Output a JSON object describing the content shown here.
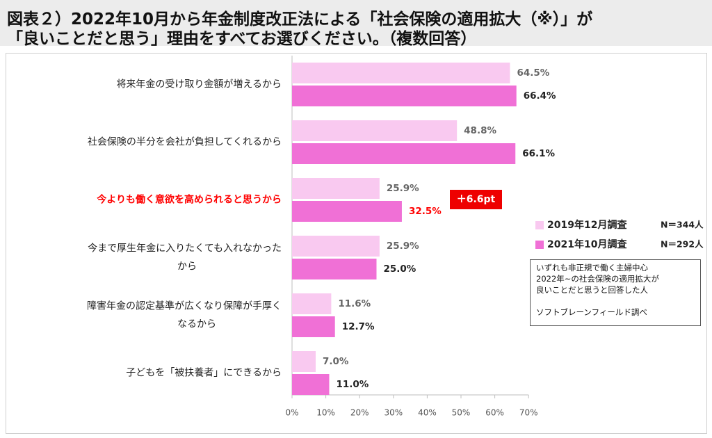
{
  "title": {
    "line1": "図表２）2022年10月から年金制度改正法による「社会保険の適用拡大（※）」が",
    "line2": "「良いことだと思う」理由をすべてお選びください。（複数回答）"
  },
  "colors": {
    "series_2019": "#f9c9f0",
    "series_2021": "#f070d6",
    "highlight": "#ff0000",
    "badge": "#ee0000"
  },
  "chart_data": {
    "type": "bar",
    "orientation": "horizontal",
    "categories": [
      [
        "将来年金の受け取り金額が増えるから"
      ],
      [
        "社会保険の半分を会社が負担してくれるから"
      ],
      [
        "今よりも働く意欲を高められると思うから"
      ],
      [
        "今まで厚生年金に入りたくても入れなかった",
        "から"
      ],
      [
        "障害年金の認定基準が広くなり保障が手厚く",
        "なるから"
      ],
      [
        "子どもを「被扶養者」にできるから"
      ]
    ],
    "highlight_category_index": 2,
    "series": [
      {
        "name": "2019年12月調査",
        "n_label": "N＝344人",
        "values": [
          64.5,
          48.8,
          25.9,
          25.9,
          11.6,
          7.0
        ],
        "labels": [
          "64.5%",
          "48.8%",
          "25.9%",
          "25.9%",
          "11.6%",
          "7.0%"
        ]
      },
      {
        "name": "2021年10月調査",
        "n_label": "N＝292人",
        "values": [
          66.4,
          66.1,
          32.5,
          25.0,
          12.7,
          11.0
        ],
        "labels": [
          "66.4%",
          "66.1%",
          "32.5%",
          "25.0%",
          "12.7%",
          "11.0%"
        ]
      }
    ],
    "xlim": [
      0,
      70
    ],
    "xticks": [
      "0%",
      "10%",
      "20%",
      "30%",
      "40%",
      "50%",
      "60%",
      "70%"
    ],
    "grid": false,
    "legend_position": "right",
    "annotation": {
      "category_index": 2,
      "text": "＋6.6pt"
    }
  },
  "note": {
    "lines": [
      "いずれも非正規で働く主婦中心",
      "2022年~の社会保険の適用拡大が",
      "良いことだと思うと回答した人",
      "",
      "ソフトブレーンフィールド調べ"
    ]
  }
}
